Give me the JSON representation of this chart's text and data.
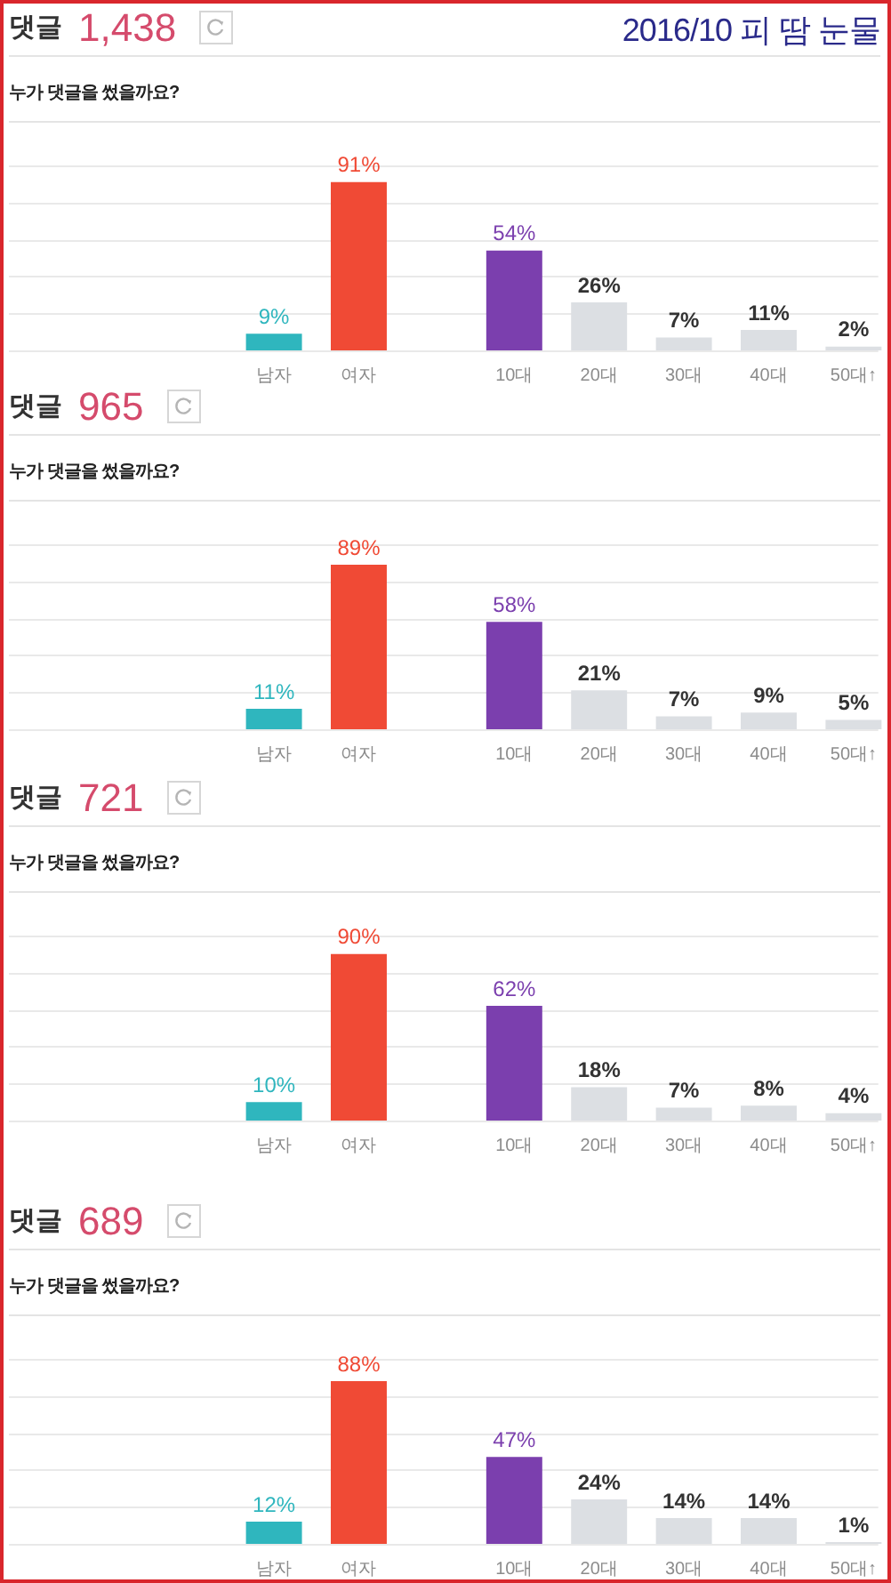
{
  "chart_data": [
    {
      "type": "bar",
      "title": "댓글 1,438",
      "annotations": [
        "2016/10 피 땀 눈물"
      ],
      "subtitle": "누가 댓글을 썼을까요?",
      "categories": [
        "남자",
        "여자",
        "10대",
        "20대",
        "30대",
        "40대",
        "50대↑"
      ],
      "values": [
        9,
        91,
        54,
        26,
        7,
        11,
        2
      ],
      "value_labels": [
        "9%",
        "91%",
        "54%",
        "26%",
        "7%",
        "11%",
        "2%"
      ],
      "colors": [
        "#2fb6be",
        "#f04a35",
        "#7b3fae",
        "#dcdfe3",
        "#dcdfe3",
        "#dcdfe3",
        "#dcdfe3"
      ],
      "ylim": [
        0,
        100
      ],
      "yticks": [
        {
          "value": 0,
          "label": null
        },
        {
          "value": 20,
          "label": null
        },
        {
          "value": 40,
          "label": null
        },
        {
          "value": 60,
          "label": null
        },
        {
          "value": 80,
          "label": null
        },
        {
          "value": 100,
          "label": null
        }
      ],
      "grid": "y",
      "tick_labels": "x"
    },
    {
      "type": "bar",
      "title": "댓글 965",
      "subtitle": "누가 댓글을 썼을까요?",
      "categories": [
        "남자",
        "여자",
        "10대",
        "20대",
        "30대",
        "40대",
        "50대↑"
      ],
      "values": [
        11,
        89,
        58,
        21,
        7,
        9,
        5
      ],
      "value_labels": [
        "11%",
        "89%",
        "58%",
        "21%",
        "7%",
        "9%",
        "5%"
      ],
      "colors": [
        "#2fb6be",
        "#f04a35",
        "#7b3fae",
        "#dcdfe3",
        "#dcdfe3",
        "#dcdfe3",
        "#dcdfe3"
      ],
      "ylim": [
        0,
        100
      ],
      "yticks": [
        {
          "value": 0,
          "label": null
        },
        {
          "value": 20,
          "label": null
        },
        {
          "value": 40,
          "label": null
        },
        {
          "value": 60,
          "label": null
        },
        {
          "value": 80,
          "label": null
        },
        {
          "value": 100,
          "label": null
        }
      ],
      "grid": "y",
      "tick_labels": "x"
    },
    {
      "type": "bar",
      "title": "댓글 721",
      "subtitle": "누가 댓글을 썼을까요?",
      "categories": [
        "남자",
        "여자",
        "10대",
        "20대",
        "30대",
        "40대",
        "50대↑"
      ],
      "values": [
        10,
        90,
        62,
        18,
        7,
        8,
        4
      ],
      "value_labels": [
        "10%",
        "90%",
        "62%",
        "18%",
        "7%",
        "8%",
        "4%"
      ],
      "colors": [
        "#2fb6be",
        "#f04a35",
        "#7b3fae",
        "#dcdfe3",
        "#dcdfe3",
        "#dcdfe3",
        "#dcdfe3"
      ],
      "ylim": [
        0,
        100
      ],
      "yticks": [
        {
          "value": 0,
          "label": null
        },
        {
          "value": 20,
          "label": null
        },
        {
          "value": 40,
          "label": null
        },
        {
          "value": 60,
          "label": null
        },
        {
          "value": 80,
          "label": null
        },
        {
          "value": 100,
          "label": null
        }
      ],
      "grid": "y",
      "tick_labels": "x"
    },
    {
      "type": "bar",
      "title": "댓글 689",
      "subtitle": "누가 댓글을 썼을까요?",
      "categories": [
        "남자",
        "여자",
        "10대",
        "20대",
        "30대",
        "40대",
        "50대↑"
      ],
      "values": [
        12,
        88,
        47,
        24,
        14,
        14,
        1
      ],
      "value_labels": [
        "12%",
        "88%",
        "47%",
        "24%",
        "14%",
        "14%",
        "1%"
      ],
      "colors": [
        "#2fb6be",
        "#f04a35",
        "#7b3fae",
        "#dcdfe3",
        "#dcdfe3",
        "#dcdfe3",
        "#dcdfe3"
      ],
      "ylim": [
        0,
        100
      ],
      "yticks": [
        {
          "value": 0,
          "label": null
        },
        {
          "value": 20,
          "label": null
        },
        {
          "value": 40,
          "label": null
        },
        {
          "value": 60,
          "label": null
        },
        {
          "value": 80,
          "label": null
        },
        {
          "value": 100,
          "label": null
        }
      ],
      "grid": "y",
      "tick_labels": "x"
    }
  ]
}
